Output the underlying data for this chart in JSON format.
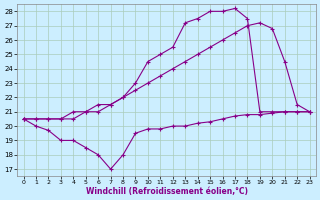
{
  "bg_color": "#cceeff",
  "grid_color": "#aaccbb",
  "line_color": "#880088",
  "xlabel": "Windchill (Refroidissement éolien,°C)",
  "xlim": [
    -0.5,
    23.5
  ],
  "ylim": [
    16.5,
    28.5
  ],
  "yticks": [
    17,
    18,
    19,
    20,
    21,
    22,
    23,
    24,
    25,
    26,
    27,
    28
  ],
  "xticks": [
    0,
    1,
    2,
    3,
    4,
    5,
    6,
    7,
    8,
    9,
    10,
    11,
    12,
    13,
    14,
    15,
    16,
    17,
    18,
    19,
    20,
    21,
    22,
    23
  ],
  "series": [
    {
      "x": [
        0,
        1,
        2,
        3,
        4,
        5,
        6,
        7,
        8,
        9,
        10,
        11,
        12,
        13,
        14,
        15,
        16,
        17,
        18,
        19,
        20,
        21,
        22,
        23
      ],
      "y": [
        20.5,
        20.0,
        19.7,
        19.0,
        19.0,
        18.5,
        18.0,
        17.0,
        18.0,
        19.5,
        19.8,
        19.8,
        20.0,
        20.0,
        20.2,
        20.3,
        20.5,
        20.7,
        20.8,
        20.8,
        20.9,
        21.0,
        21.0,
        21.0
      ]
    },
    {
      "x": [
        0,
        1,
        2,
        3,
        4,
        5,
        6,
        7,
        8,
        9,
        10,
        11,
        12,
        13,
        14,
        15,
        16,
        17,
        18,
        19,
        20,
        21,
        22,
        23
      ],
      "y": [
        20.5,
        20.5,
        20.5,
        20.5,
        21.0,
        21.0,
        21.0,
        21.5,
        22.0,
        22.5,
        23.0,
        23.5,
        24.0,
        24.5,
        25.0,
        25.5,
        26.0,
        26.5,
        27.0,
        27.2,
        26.8,
        24.5,
        21.5,
        21.0
      ]
    },
    {
      "x": [
        0,
        1,
        2,
        3,
        4,
        5,
        6,
        7,
        8,
        9,
        10,
        11,
        12,
        13,
        14,
        15,
        16,
        17,
        18,
        19,
        20,
        21,
        22,
        23
      ],
      "y": [
        20.5,
        20.5,
        20.5,
        20.5,
        20.5,
        21.0,
        21.5,
        21.5,
        22.0,
        23.0,
        24.5,
        25.0,
        25.5,
        27.2,
        27.5,
        28.0,
        28.0,
        28.2,
        27.5,
        21.0,
        21.0,
        21.0,
        21.0,
        21.0
      ]
    }
  ]
}
